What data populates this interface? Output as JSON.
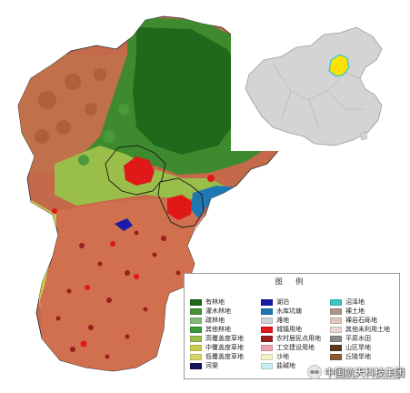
{
  "legend": {
    "title": "图 例",
    "items": [
      {
        "label": "有林地",
        "color": "#1e6a1a"
      },
      {
        "label": "湖泊",
        "color": "#1a1aa8"
      },
      {
        "label": "沼泽地",
        "color": "#3ec6c6"
      },
      {
        "label": "灌木林地",
        "color": "#4a8f3a"
      },
      {
        "label": "水库坑塘",
        "color": "#1e78b4"
      },
      {
        "label": "裸土地",
        "color": "#a89a86"
      },
      {
        "label": "疏林地",
        "color": "#86b87a"
      },
      {
        "label": "滩地",
        "color": "#cfd2d8"
      },
      {
        "label": "裸岩石砾地",
        "color": "#e2c6ba"
      },
      {
        "label": "其他林地",
        "color": "#3a9a3a"
      },
      {
        "label": "城镇用地",
        "color": "#e01818"
      },
      {
        "label": "其他未利用土地",
        "color": "#e8d6d2"
      },
      {
        "label": "高覆盖度草地",
        "color": "#9abe4a"
      },
      {
        "label": "农村居民点用地",
        "color": "#9a1e1e"
      },
      {
        "label": "平原水田",
        "color": "#8a8a8a"
      },
      {
        "label": "中覆盖度草地",
        "color": "#c8cc4e"
      },
      {
        "label": "工交建设用地",
        "color": "#eaa4ae"
      },
      {
        "label": "山区旱地",
        "color": "#5a3a22"
      },
      {
        "label": "低覆盖度草地",
        "color": "#d8d468"
      },
      {
        "label": "沙地",
        "color": "#f2f2c8"
      },
      {
        "label": "丘陵旱地",
        "color": "#8a5a3a"
      },
      {
        "label": "河渠",
        "color": "#14145a"
      },
      {
        "label": "盐碱地",
        "color": "#c8eef2"
      }
    ]
  },
  "inset": {
    "highlight_color": "#ffe000",
    "highlight_edge": "#20c8e0",
    "country_fill": "#d4d4d4"
  },
  "watermark": {
    "icon": "wechat-icon",
    "text": "中国航天科技集团"
  }
}
